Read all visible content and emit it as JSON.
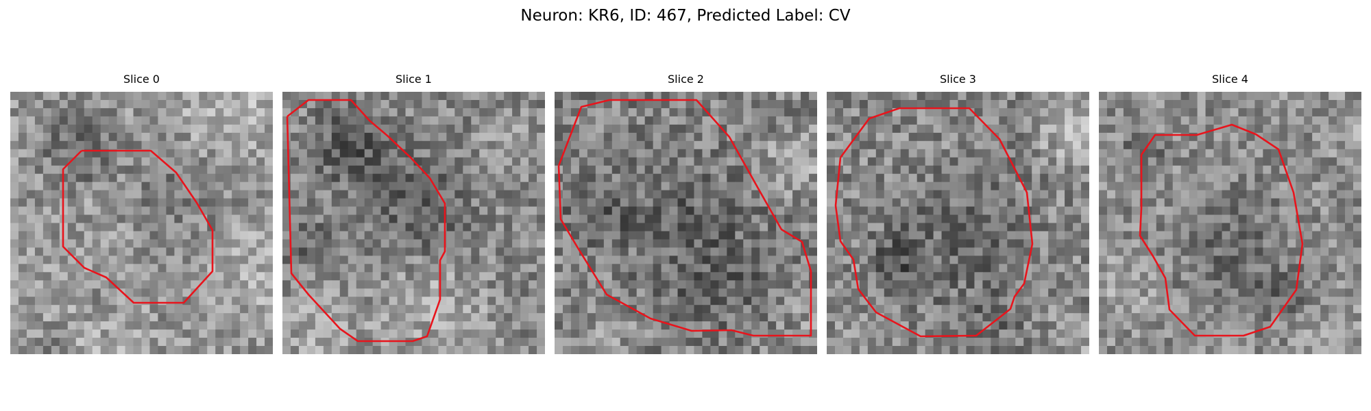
{
  "figure": {
    "title": "Neuron: KR6, ID: 467, Predicted Label: CV"
  },
  "outline_color": "#e8141c",
  "slices": [
    {
      "title": "Slice 0"
    },
    {
      "title": "Slice 1"
    },
    {
      "title": "Slice 2"
    },
    {
      "title": "Slice 3"
    },
    {
      "title": "Slice 4"
    }
  ]
}
